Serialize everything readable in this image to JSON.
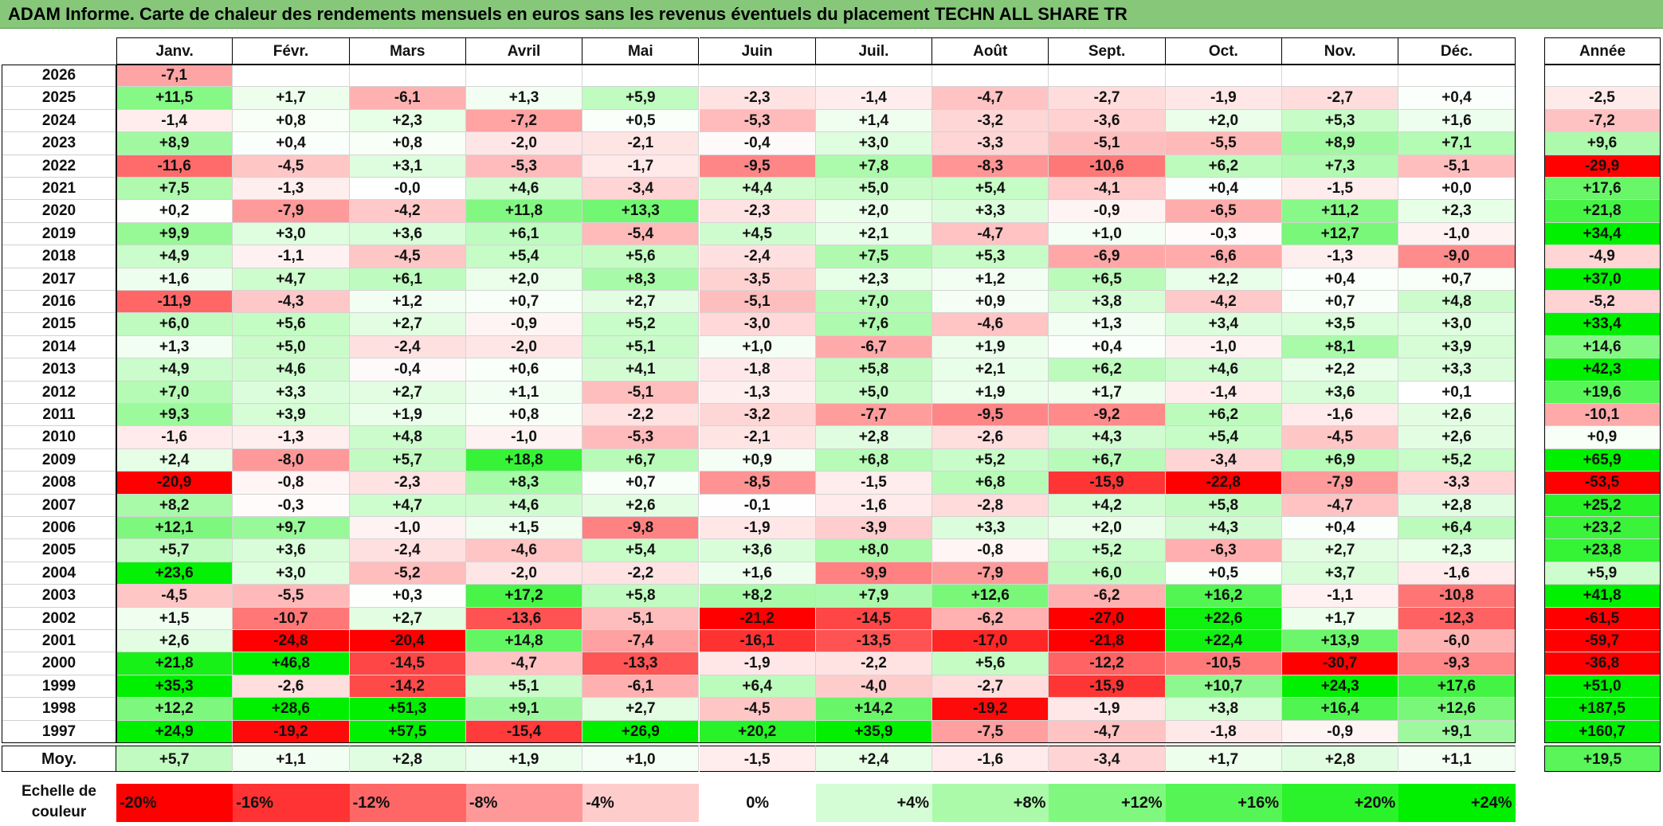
{
  "title": "ADAM Informe. Carte de chaleur des rendements mensuels en euros sans les revenus éventuels du placement TECHN ALL SHARE TR",
  "chart_data": {
    "type": "heatmap",
    "columns": [
      "Janv.",
      "Févr.",
      "Mars",
      "Avril",
      "Mai",
      "Juin",
      "Juil.",
      "Août",
      "Sept.",
      "Oct.",
      "Nov.",
      "Déc."
    ],
    "annual_header": "Année",
    "rows": [
      {
        "year": "2026",
        "months": [
          "-7,1",
          "",
          "",
          "",
          "",
          "",
          "",
          "",
          "",
          "",
          "",
          ""
        ],
        "annual": ""
      },
      {
        "year": "2025",
        "months": [
          "+11,5",
          "+1,7",
          "-6,1",
          "+1,3",
          "+5,9",
          "-2,3",
          "-1,4",
          "-4,7",
          "-2,7",
          "-1,9",
          "-2,7",
          "+0,4"
        ],
        "annual": "-2,5"
      },
      {
        "year": "2024",
        "months": [
          "-1,4",
          "+0,8",
          "+2,3",
          "-7,2",
          "+0,5",
          "-5,3",
          "+1,4",
          "-3,2",
          "-3,6",
          "+2,0",
          "+5,3",
          "+1,6"
        ],
        "annual": "-7,2"
      },
      {
        "year": "2023",
        "months": [
          "+8,9",
          "+0,4",
          "+0,8",
          "-2,0",
          "-2,1",
          "-0,4",
          "+3,0",
          "-3,3",
          "-5,1",
          "-5,5",
          "+8,9",
          "+7,1"
        ],
        "annual": "+9,6"
      },
      {
        "year": "2022",
        "months": [
          "-11,6",
          "-4,5",
          "+3,1",
          "-5,3",
          "-1,7",
          "-9,5",
          "+7,8",
          "-8,3",
          "-10,6",
          "+6,2",
          "+7,3",
          "-5,1"
        ],
        "annual": "-29,9"
      },
      {
        "year": "2021",
        "months": [
          "+7,5",
          "-1,3",
          "-0,0",
          "+4,6",
          "-3,4",
          "+4,4",
          "+5,0",
          "+5,4",
          "-4,1",
          "+0,4",
          "-1,5",
          "+0,0"
        ],
        "annual": "+17,6"
      },
      {
        "year": "2020",
        "months": [
          "+0,2",
          "-7,9",
          "-4,2",
          "+11,8",
          "+13,3",
          "-2,3",
          "+2,0",
          "+3,3",
          "-0,9",
          "-6,5",
          "+11,2",
          "+2,3"
        ],
        "annual": "+21,8"
      },
      {
        "year": "2019",
        "months": [
          "+9,9",
          "+3,0",
          "+3,6",
          "+6,1",
          "-5,4",
          "+4,5",
          "+2,1",
          "-4,7",
          "+1,0",
          "-0,3",
          "+12,7",
          "-1,0"
        ],
        "annual": "+34,4"
      },
      {
        "year": "2018",
        "months": [
          "+4,9",
          "-1,1",
          "-4,5",
          "+5,4",
          "+5,6",
          "-2,4",
          "+7,5",
          "+5,3",
          "-6,9",
          "-6,6",
          "-1,3",
          "-9,0"
        ],
        "annual": "-4,9"
      },
      {
        "year": "2017",
        "months": [
          "+1,6",
          "+4,7",
          "+6,1",
          "+2,0",
          "+8,3",
          "-3,5",
          "+2,3",
          "+1,2",
          "+6,5",
          "+2,2",
          "+0,4",
          "+0,7"
        ],
        "annual": "+37,0"
      },
      {
        "year": "2016",
        "months": [
          "-11,9",
          "-4,3",
          "+1,2",
          "+0,7",
          "+2,7",
          "-5,1",
          "+7,0",
          "+0,9",
          "+3,8",
          "-4,2",
          "+0,7",
          "+4,8"
        ],
        "annual": "-5,2"
      },
      {
        "year": "2015",
        "months": [
          "+6,0",
          "+5,6",
          "+2,7",
          "-0,9",
          "+5,2",
          "-3,0",
          "+7,6",
          "-4,6",
          "+1,3",
          "+3,4",
          "+3,5",
          "+3,0"
        ],
        "annual": "+33,4"
      },
      {
        "year": "2014",
        "months": [
          "+1,3",
          "+5,0",
          "-2,4",
          "-2,0",
          "+5,1",
          "+1,0",
          "-6,7",
          "+1,9",
          "+0,4",
          "-1,0",
          "+8,1",
          "+3,9"
        ],
        "annual": "+14,6"
      },
      {
        "year": "2013",
        "months": [
          "+4,9",
          "+4,6",
          "-0,4",
          "+0,6",
          "+4,1",
          "-1,8",
          "+5,8",
          "+2,1",
          "+6,2",
          "+4,6",
          "+2,2",
          "+3,3"
        ],
        "annual": "+42,3"
      },
      {
        "year": "2012",
        "months": [
          "+7,0",
          "+3,3",
          "+2,7",
          "+1,1",
          "-5,1",
          "-1,3",
          "+5,0",
          "+1,9",
          "+1,7",
          "-1,4",
          "+3,6",
          "+0,1"
        ],
        "annual": "+19,6"
      },
      {
        "year": "2011",
        "months": [
          "+9,3",
          "+3,9",
          "+1,9",
          "+0,8",
          "-2,2",
          "-3,2",
          "-7,7",
          "-9,5",
          "-9,2",
          "+6,2",
          "-1,6",
          "+2,6"
        ],
        "annual": "-10,1"
      },
      {
        "year": "2010",
        "months": [
          "-1,6",
          "-1,3",
          "+4,8",
          "-1,0",
          "-5,3",
          "-2,1",
          "+2,8",
          "-2,6",
          "+4,3",
          "+5,4",
          "-4,5",
          "+2,6"
        ],
        "annual": "+0,9"
      },
      {
        "year": "2009",
        "months": [
          "+2,4",
          "-8,0",
          "+5,7",
          "+18,8",
          "+6,7",
          "+0,9",
          "+6,8",
          "+5,2",
          "+6,7",
          "-3,4",
          "+6,9",
          "+5,2"
        ],
        "annual": "+65,9"
      },
      {
        "year": "2008",
        "months": [
          "-20,9",
          "-0,8",
          "-2,3",
          "+8,3",
          "+0,7",
          "-8,5",
          "-1,5",
          "+6,8",
          "-15,9",
          "-22,8",
          "-7,9",
          "-3,3"
        ],
        "annual": "-53,5"
      },
      {
        "year": "2007",
        "months": [
          "+8,2",
          "-0,3",
          "+4,7",
          "+4,6",
          "+2,6",
          "-0,1",
          "-1,6",
          "-2,8",
          "+4,2",
          "+5,8",
          "-4,7",
          "+2,8"
        ],
        "annual": "+25,2"
      },
      {
        "year": "2006",
        "months": [
          "+12,1",
          "+9,7",
          "-1,0",
          "+1,5",
          "-9,8",
          "-1,9",
          "-3,9",
          "+3,3",
          "+2,0",
          "+4,3",
          "+0,4",
          "+6,4"
        ],
        "annual": "+23,2"
      },
      {
        "year": "2005",
        "months": [
          "+5,7",
          "+3,6",
          "-2,4",
          "-4,6",
          "+5,4",
          "+3,6",
          "+8,0",
          "-0,8",
          "+5,2",
          "-6,3",
          "+2,7",
          "+2,3"
        ],
        "annual": "+23,8"
      },
      {
        "year": "2004",
        "months": [
          "+23,6",
          "+3,0",
          "-5,2",
          "-2,0",
          "-2,2",
          "+1,6",
          "-9,9",
          "-7,9",
          "+6,0",
          "+0,5",
          "+3,7",
          "-1,6"
        ],
        "annual": "+5,9"
      },
      {
        "year": "2003",
        "months": [
          "-4,5",
          "-5,5",
          "+0,3",
          "+17,2",
          "+5,8",
          "+8,2",
          "+7,9",
          "+12,6",
          "-6,2",
          "+16,2",
          "-1,1",
          "-10,8"
        ],
        "annual": "+41,8"
      },
      {
        "year": "2002",
        "months": [
          "+1,5",
          "-10,7",
          "+2,7",
          "-13,6",
          "-5,1",
          "-21,2",
          "-14,5",
          "-6,2",
          "-27,0",
          "+22,6",
          "+1,7",
          "-12,3"
        ],
        "annual": "-61,5"
      },
      {
        "year": "2001",
        "months": [
          "+2,6",
          "-24,8",
          "-20,4",
          "+14,8",
          "-7,4",
          "-16,1",
          "-13,5",
          "-17,0",
          "-21,8",
          "+22,4",
          "+13,9",
          "-6,0"
        ],
        "annual": "-59,7"
      },
      {
        "year": "2000",
        "months": [
          "+21,8",
          "+46,8",
          "-14,5",
          "-4,7",
          "-13,3",
          "-1,9",
          "-2,2",
          "+5,6",
          "-12,2",
          "-10,5",
          "-30,7",
          "-9,3"
        ],
        "annual": "-36,8"
      },
      {
        "year": "1999",
        "months": [
          "+35,3",
          "-2,6",
          "-14,2",
          "+5,1",
          "-6,1",
          "+6,4",
          "-4,0",
          "-2,7",
          "-15,9",
          "+10,7",
          "+24,3",
          "+17,6"
        ],
        "annual": "+51,0"
      },
      {
        "year": "1998",
        "months": [
          "+12,2",
          "+28,6",
          "+51,3",
          "+9,1",
          "+2,7",
          "-4,5",
          "+14,2",
          "-19,2",
          "-1,9",
          "+3,8",
          "+16,4",
          "+12,6"
        ],
        "annual": "+187,5"
      },
      {
        "year": "1997",
        "months": [
          "+24,9",
          "-19,2",
          "+57,5",
          "-15,4",
          "+26,9",
          "+20,2",
          "+35,9",
          "-7,5",
          "-4,7",
          "-1,8",
          "-0,9",
          "+9,1"
        ],
        "annual": "+160,7"
      }
    ],
    "average": {
      "label": "Moy.",
      "months": [
        "+5,7",
        "+1,1",
        "+2,8",
        "+1,9",
        "+1,0",
        "-1,5",
        "+2,4",
        "-1,6",
        "-3,4",
        "+1,7",
        "+2,8",
        "+1,1"
      ],
      "annual": "+19,5"
    },
    "color_scale": {
      "label": "Echelle de couleur",
      "stops": [
        "-20%",
        "-16%",
        "-12%",
        "-8%",
        "-4%",
        "0%",
        "+4%",
        "+8%",
        "+12%",
        "+16%",
        "+20%",
        "+24%"
      ],
      "negative_color": "#ff0000",
      "neutral_color": "#ffffff",
      "positive_color": "#00f000"
    },
    "title_bar_color": "#86c77a"
  }
}
